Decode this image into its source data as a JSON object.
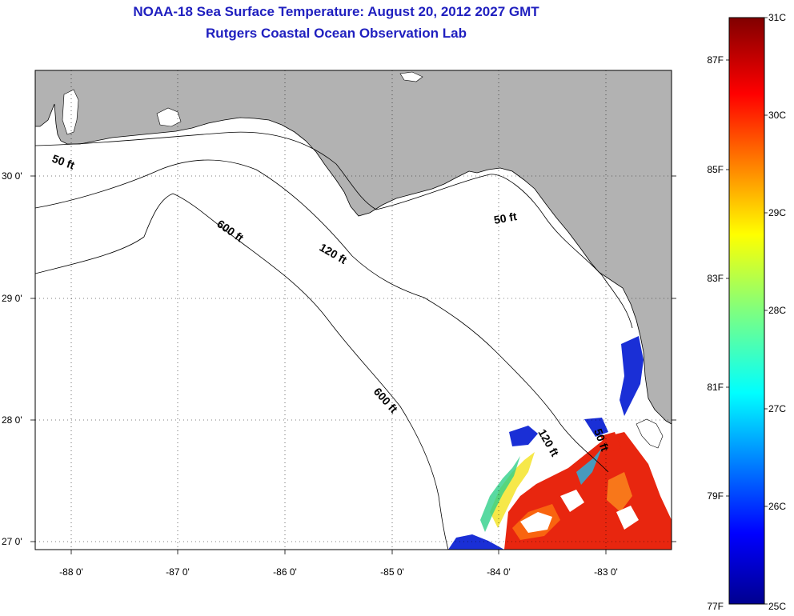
{
  "title": {
    "line1": "NOAA-18 Sea Surface Temperature:  August 20, 2012 2027 GMT",
    "line2": "Rutgers Coastal Ocean Observation Lab"
  },
  "colors": {
    "title": "#1f1fbf",
    "land": "#b2b2b2",
    "sea_no_data": "#ffffff"
  },
  "map": {
    "longitude_ticks": [
      "-88 0'",
      "-87 0'",
      "-86 0'",
      "-85 0'",
      "-84 0'",
      "-83 0'"
    ],
    "latitude_ticks": [
      "30 0'",
      "29 0'",
      "28 0'",
      "27 0'"
    ],
    "contour_labels": {
      "c50_west": "50 ft",
      "c600_a": "600 ft",
      "c120_a": "120 ft",
      "c50_east": "50 ft",
      "c600_b": "600 ft",
      "c120_b": "120 ft",
      "c50_south": "50 ft"
    }
  },
  "colorbar": {
    "celsius_labels": [
      "31C",
      "30C",
      "29C",
      "28C",
      "27C",
      "26C",
      "25C"
    ],
    "fahrenheit_labels": [
      "87F",
      "85F",
      "83F",
      "81F",
      "79F",
      "77F"
    ]
  }
}
